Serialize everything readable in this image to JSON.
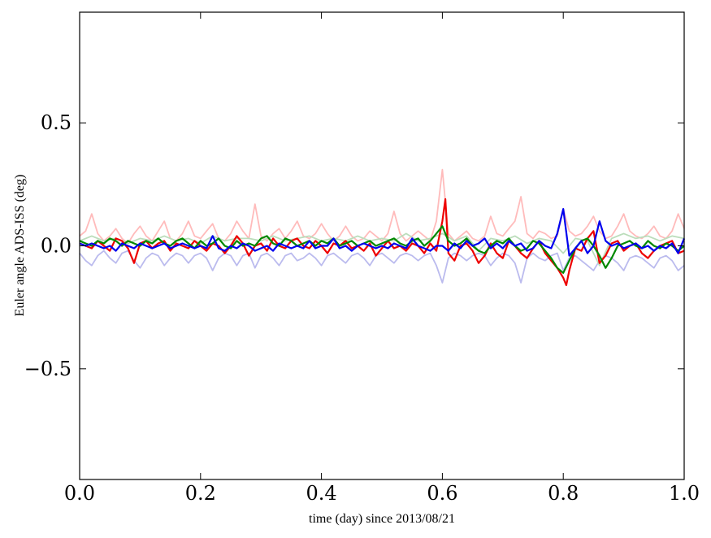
{
  "chart_data": {
    "type": "line",
    "xlabel": "time (day) since 2013/08/21",
    "ylabel": "Euler angle ADS-ISS (deg)",
    "xlim": [
      0.0,
      1.0
    ],
    "ylim": [
      -0.95,
      0.95
    ],
    "xticks": [
      0.0,
      0.2,
      0.4,
      0.6,
      0.8,
      1.0
    ],
    "xtick_labels": [
      "0.0",
      "0.2",
      "0.4",
      "0.6",
      "0.8",
      "1.0"
    ],
    "yticks": [
      -0.5,
      0.0,
      0.5
    ],
    "ytick_labels": [
      "−0.5",
      "0.0",
      "0.5"
    ],
    "grid": false,
    "series": [
      {
        "color": "#ffbbbb",
        "x": [
          0,
          0.01,
          0.02,
          0.03,
          0.04,
          0.05,
          0.06,
          0.07,
          0.08,
          0.09,
          0.1,
          0.11,
          0.12,
          0.13,
          0.14,
          0.15,
          0.16,
          0.17,
          0.18,
          0.19,
          0.2,
          0.21,
          0.22,
          0.23,
          0.24,
          0.25,
          0.26,
          0.27,
          0.28,
          0.29,
          0.3,
          0.31,
          0.32,
          0.33,
          0.34,
          0.35,
          0.36,
          0.37,
          0.38,
          0.39,
          0.4,
          0.41,
          0.42,
          0.43,
          0.44,
          0.45,
          0.46,
          0.47,
          0.48,
          0.49,
          0.5,
          0.51,
          0.52,
          0.53,
          0.54,
          0.55,
          0.56,
          0.57,
          0.58,
          0.59,
          0.6,
          0.61,
          0.62,
          0.63,
          0.64,
          0.65,
          0.66,
          0.67,
          0.68,
          0.69,
          0.7,
          0.71,
          0.72,
          0.73,
          0.74,
          0.75,
          0.76,
          0.77,
          0.78,
          0.79,
          0.8,
          0.81,
          0.82,
          0.83,
          0.84,
          0.85,
          0.86,
          0.87,
          0.88,
          0.89,
          0.9,
          0.91,
          0.92,
          0.93,
          0.94,
          0.95,
          0.96,
          0.97,
          0.98,
          0.99,
          1.0
        ],
        "y": [
          0.04,
          0.06,
          0.13,
          0.05,
          0.02,
          0.04,
          0.07,
          0.03,
          0.01,
          0.05,
          0.08,
          0.04,
          0.02,
          0.06,
          0.1,
          0.03,
          0.02,
          0.05,
          0.1,
          0.04,
          0.03,
          0.06,
          0.09,
          0.03,
          0.02,
          0.05,
          0.1,
          0.06,
          0.03,
          0.17,
          0.04,
          0.02,
          0.05,
          0.07,
          0.03,
          0.06,
          0.1,
          0.04,
          0.03,
          0.05,
          0.09,
          0.05,
          0.02,
          0.04,
          0.08,
          0.04,
          0.02,
          0.03,
          0.06,
          0.04,
          0.02,
          0.05,
          0.14,
          0.05,
          0.02,
          0.04,
          0.06,
          0.04,
          0.02,
          0.1,
          0.31,
          0.05,
          0.02,
          0.04,
          0.06,
          0.03,
          0.02,
          0.04,
          0.12,
          0.05,
          0.04,
          0.07,
          0.1,
          0.2,
          0.05,
          0.03,
          0.06,
          0.05,
          0.03,
          0.04,
          0.15,
          0.06,
          0.04,
          0.05,
          0.08,
          0.12,
          0.06,
          0.03,
          0.04,
          0.08,
          0.13,
          0.06,
          0.04,
          0.03,
          0.05,
          0.08,
          0.04,
          0.03,
          0.06,
          0.13,
          0.07
        ]
      },
      {
        "color": "#bbbbee",
        "x": [
          0,
          0.01,
          0.02,
          0.03,
          0.04,
          0.05,
          0.06,
          0.07,
          0.08,
          0.09,
          0.1,
          0.11,
          0.12,
          0.13,
          0.14,
          0.15,
          0.16,
          0.17,
          0.18,
          0.19,
          0.2,
          0.21,
          0.22,
          0.23,
          0.24,
          0.25,
          0.26,
          0.27,
          0.28,
          0.29,
          0.3,
          0.31,
          0.32,
          0.33,
          0.34,
          0.35,
          0.36,
          0.37,
          0.38,
          0.39,
          0.4,
          0.41,
          0.42,
          0.43,
          0.44,
          0.45,
          0.46,
          0.47,
          0.48,
          0.49,
          0.5,
          0.51,
          0.52,
          0.53,
          0.54,
          0.55,
          0.56,
          0.57,
          0.58,
          0.59,
          0.6,
          0.61,
          0.62,
          0.63,
          0.64,
          0.65,
          0.66,
          0.67,
          0.68,
          0.69,
          0.7,
          0.71,
          0.72,
          0.73,
          0.74,
          0.75,
          0.76,
          0.77,
          0.78,
          0.79,
          0.8,
          0.81,
          0.82,
          0.83,
          0.84,
          0.85,
          0.86,
          0.87,
          0.88,
          0.89,
          0.9,
          0.91,
          0.92,
          0.93,
          0.94,
          0.95,
          0.96,
          0.97,
          0.98,
          0.99,
          1.0
        ],
        "y": [
          -0.03,
          -0.06,
          -0.08,
          -0.04,
          -0.02,
          -0.05,
          -0.07,
          -0.03,
          -0.02,
          -0.06,
          -0.09,
          -0.05,
          -0.03,
          -0.04,
          -0.08,
          -0.05,
          -0.03,
          -0.04,
          -0.07,
          -0.04,
          -0.03,
          -0.05,
          -0.1,
          -0.05,
          -0.03,
          -0.04,
          -0.08,
          -0.04,
          -0.03,
          -0.09,
          -0.04,
          -0.03,
          -0.05,
          -0.08,
          -0.04,
          -0.03,
          -0.06,
          -0.05,
          -0.03,
          -0.05,
          -0.08,
          -0.04,
          -0.03,
          -0.05,
          -0.07,
          -0.04,
          -0.03,
          -0.05,
          -0.08,
          -0.04,
          -0.03,
          -0.05,
          -0.07,
          -0.04,
          -0.03,
          -0.04,
          -0.06,
          -0.04,
          -0.03,
          -0.08,
          -0.15,
          -0.05,
          -0.03,
          -0.04,
          -0.06,
          -0.04,
          -0.03,
          -0.04,
          -0.08,
          -0.05,
          -0.03,
          -0.04,
          -0.07,
          -0.15,
          -0.05,
          -0.03,
          -0.05,
          -0.06,
          -0.04,
          -0.03,
          -0.1,
          -0.05,
          -0.04,
          -0.06,
          -0.08,
          -0.1,
          -0.06,
          -0.04,
          -0.05,
          -0.07,
          -0.1,
          -0.05,
          -0.04,
          -0.05,
          -0.07,
          -0.09,
          -0.05,
          -0.04,
          -0.06,
          -0.1,
          -0.08
        ]
      },
      {
        "color": "#bbddbb",
        "x": [
          0,
          0.02,
          0.04,
          0.06,
          0.08,
          0.1,
          0.12,
          0.14,
          0.16,
          0.18,
          0.2,
          0.22,
          0.24,
          0.26,
          0.28,
          0.3,
          0.32,
          0.34,
          0.36,
          0.38,
          0.4,
          0.42,
          0.44,
          0.46,
          0.48,
          0.5,
          0.52,
          0.54,
          0.56,
          0.58,
          0.6,
          0.62,
          0.64,
          0.66,
          0.68,
          0.7,
          0.72,
          0.74,
          0.76,
          0.78,
          0.8,
          0.82,
          0.84,
          0.86,
          0.88,
          0.9,
          0.92,
          0.94,
          0.96,
          0.98,
          1.0
        ],
        "y": [
          0.02,
          0.04,
          0.02,
          0.03,
          0.01,
          0.03,
          0.02,
          0.04,
          0.02,
          0.03,
          0.01,
          0.04,
          0.02,
          0.03,
          0.03,
          0.02,
          0.04,
          0.02,
          0.03,
          0.04,
          0.02,
          0.03,
          0.02,
          0.04,
          0.02,
          0.03,
          0.02,
          0.05,
          0.02,
          0.03,
          0.05,
          0.02,
          0.04,
          -0.02,
          0.03,
          0.02,
          0.04,
          0.01,
          0.03,
          0.02,
          -0.03,
          0.03,
          0.02,
          -0.08,
          0.03,
          0.05,
          0.03,
          0.04,
          0.02,
          0.04,
          0.03
        ]
      },
      {
        "color": "#ee0000",
        "x": [
          0,
          0.01,
          0.02,
          0.03,
          0.04,
          0.05,
          0.06,
          0.07,
          0.08,
          0.09,
          0.1,
          0.11,
          0.12,
          0.13,
          0.14,
          0.15,
          0.16,
          0.17,
          0.18,
          0.19,
          0.2,
          0.21,
          0.22,
          0.23,
          0.24,
          0.25,
          0.26,
          0.27,
          0.28,
          0.29,
          0.3,
          0.31,
          0.32,
          0.33,
          0.34,
          0.35,
          0.36,
          0.37,
          0.38,
          0.39,
          0.4,
          0.41,
          0.42,
          0.43,
          0.44,
          0.45,
          0.46,
          0.47,
          0.48,
          0.49,
          0.5,
          0.51,
          0.52,
          0.53,
          0.54,
          0.55,
          0.56,
          0.57,
          0.58,
          0.59,
          0.6,
          0.605,
          0.61,
          0.62,
          0.63,
          0.64,
          0.65,
          0.66,
          0.67,
          0.68,
          0.69,
          0.7,
          0.71,
          0.72,
          0.73,
          0.74,
          0.75,
          0.76,
          0.77,
          0.78,
          0.79,
          0.8,
          0.805,
          0.81,
          0.82,
          0.83,
          0.84,
          0.85,
          0.86,
          0.87,
          0.88,
          0.89,
          0.9,
          0.91,
          0.92,
          0.93,
          0.94,
          0.95,
          0.96,
          0.97,
          0.98,
          0.99,
          1.0
        ],
        "y": [
          0.01,
          0.0,
          -0.01,
          0.02,
          0.0,
          -0.02,
          0.03,
          0.02,
          -0.01,
          -0.07,
          0.01,
          0.02,
          -0.01,
          0.01,
          0.02,
          -0.02,
          0.01,
          0.0,
          -0.01,
          0.02,
          0.0,
          -0.02,
          0.01,
          0.0,
          -0.03,
          0.0,
          0.04,
          0.01,
          -0.04,
          0.0,
          0.01,
          -0.02,
          0.03,
          0.0,
          -0.01,
          0.02,
          0.03,
          0.0,
          -0.01,
          0.02,
          0.0,
          -0.03,
          0.01,
          0.0,
          0.02,
          -0.01,
          0.0,
          -0.02,
          0.01,
          -0.04,
          -0.01,
          0.02,
          -0.01,
          0.0,
          -0.02,
          0.01,
          0.0,
          -0.03,
          0.01,
          -0.02,
          0.1,
          0.19,
          -0.03,
          -0.06,
          0.0,
          0.01,
          -0.02,
          -0.07,
          -0.04,
          0.01,
          -0.03,
          -0.05,
          0.02,
          0.0,
          -0.03,
          -0.05,
          -0.01,
          0.02,
          -0.03,
          -0.06,
          -0.09,
          -0.13,
          -0.16,
          -0.1,
          -0.01,
          -0.02,
          0.03,
          0.06,
          -0.07,
          -0.04,
          0.01,
          0.02,
          -0.02,
          0.0,
          0.01,
          -0.03,
          -0.05,
          -0.02,
          0.0,
          0.01,
          0.02,
          -0.03,
          -0.02
        ]
      },
      {
        "color": "#008800",
        "x": [
          0,
          0.01,
          0.02,
          0.03,
          0.04,
          0.05,
          0.06,
          0.07,
          0.08,
          0.09,
          0.1,
          0.11,
          0.12,
          0.13,
          0.14,
          0.15,
          0.16,
          0.17,
          0.18,
          0.19,
          0.2,
          0.21,
          0.22,
          0.23,
          0.24,
          0.25,
          0.26,
          0.27,
          0.28,
          0.29,
          0.3,
          0.31,
          0.32,
          0.33,
          0.34,
          0.35,
          0.36,
          0.37,
          0.38,
          0.39,
          0.4,
          0.41,
          0.42,
          0.43,
          0.44,
          0.45,
          0.46,
          0.47,
          0.48,
          0.49,
          0.5,
          0.51,
          0.52,
          0.53,
          0.54,
          0.55,
          0.56,
          0.57,
          0.58,
          0.59,
          0.6,
          0.61,
          0.62,
          0.63,
          0.64,
          0.65,
          0.66,
          0.67,
          0.68,
          0.69,
          0.7,
          0.71,
          0.72,
          0.73,
          0.74,
          0.75,
          0.76,
          0.77,
          0.78,
          0.79,
          0.8,
          0.81,
          0.82,
          0.83,
          0.84,
          0.85,
          0.86,
          0.87,
          0.88,
          0.89,
          0.9,
          0.91,
          0.92,
          0.93,
          0.94,
          0.95,
          0.96,
          0.97,
          0.98,
          0.99,
          1.0
        ],
        "y": [
          0.02,
          0.01,
          0.0,
          0.02,
          0.01,
          0.03,
          0.02,
          0.0,
          0.02,
          0.01,
          0.0,
          0.02,
          0.01,
          0.03,
          0.01,
          0.0,
          0.02,
          0.03,
          0.01,
          -0.01,
          0.02,
          0.0,
          0.01,
          0.03,
          0.0,
          -0.01,
          0.02,
          0.0,
          0.01,
          0.0,
          0.03,
          0.04,
          0.01,
          0.0,
          0.03,
          0.02,
          0.0,
          0.01,
          0.02,
          0.0,
          0.02,
          0.01,
          0.03,
          0.0,
          0.01,
          0.02,
          0.0,
          0.01,
          0.02,
          0.0,
          0.01,
          0.02,
          0.03,
          0.01,
          0.0,
          0.02,
          0.03,
          0.0,
          0.02,
          0.05,
          0.08,
          0.02,
          0.0,
          0.01,
          0.03,
          0.0,
          -0.02,
          -0.03,
          0.0,
          0.02,
          0.01,
          0.03,
          0.0,
          -0.02,
          -0.01,
          0.02,
          0.01,
          -0.02,
          -0.05,
          -0.09,
          -0.11,
          -0.06,
          -0.01,
          0.02,
          0.03,
          0.0,
          -0.04,
          -0.09,
          -0.05,
          0.0,
          0.01,
          0.02,
          0.0,
          -0.01,
          0.02,
          0.0,
          -0.01,
          0.01,
          0.0,
          -0.02,
          0.0
        ]
      },
      {
        "color": "#0000ee",
        "x": [
          0,
          0.01,
          0.02,
          0.03,
          0.04,
          0.05,
          0.06,
          0.07,
          0.08,
          0.09,
          0.1,
          0.11,
          0.12,
          0.13,
          0.14,
          0.15,
          0.16,
          0.17,
          0.18,
          0.19,
          0.2,
          0.21,
          0.22,
          0.23,
          0.24,
          0.25,
          0.26,
          0.27,
          0.28,
          0.29,
          0.3,
          0.31,
          0.32,
          0.33,
          0.34,
          0.35,
          0.36,
          0.37,
          0.38,
          0.39,
          0.4,
          0.41,
          0.42,
          0.43,
          0.44,
          0.45,
          0.46,
          0.47,
          0.48,
          0.49,
          0.5,
          0.51,
          0.52,
          0.53,
          0.54,
          0.55,
          0.56,
          0.57,
          0.58,
          0.59,
          0.6,
          0.61,
          0.62,
          0.63,
          0.64,
          0.65,
          0.66,
          0.67,
          0.68,
          0.69,
          0.7,
          0.71,
          0.72,
          0.73,
          0.74,
          0.75,
          0.76,
          0.77,
          0.78,
          0.79,
          0.8,
          0.81,
          0.82,
          0.83,
          0.84,
          0.85,
          0.86,
          0.87,
          0.88,
          0.89,
          0.9,
          0.91,
          0.92,
          0.93,
          0.94,
          0.95,
          0.96,
          0.97,
          0.98,
          0.99,
          1.0
        ],
        "y": [
          0.01,
          0.0,
          0.01,
          0.0,
          -0.01,
          0.0,
          -0.02,
          0.01,
          0.0,
          -0.01,
          0.01,
          0.0,
          -0.01,
          0.0,
          0.01,
          -0.01,
          0.0,
          0.01,
          0.0,
          -0.01,
          0.0,
          -0.01,
          0.04,
          -0.01,
          -0.02,
          0.0,
          -0.01,
          0.01,
          0.0,
          -0.02,
          -0.01,
          0.0,
          -0.02,
          0.01,
          0.0,
          -0.01,
          0.0,
          -0.01,
          0.02,
          -0.01,
          0.0,
          0.0,
          0.03,
          -0.01,
          0.0,
          -0.02,
          0.0,
          0.01,
          0.0,
          -0.01,
          0.0,
          -0.01,
          0.01,
          0.0,
          -0.01,
          0.03,
          0.0,
          -0.01,
          -0.02,
          0.0,
          0.0,
          -0.02,
          0.01,
          -0.01,
          0.02,
          0.0,
          0.01,
          0.03,
          -0.01,
          0.01,
          -0.01,
          0.02,
          0.0,
          0.01,
          -0.02,
          -0.01,
          0.02,
          0.0,
          -0.01,
          0.05,
          0.15,
          -0.04,
          -0.01,
          0.02,
          -0.03,
          0.0,
          0.1,
          0.02,
          0.0,
          0.01,
          -0.01,
          0.0,
          0.01,
          -0.01,
          0.0,
          -0.02,
          0.0,
          -0.01,
          0.01,
          -0.03,
          0.03
        ]
      }
    ]
  }
}
